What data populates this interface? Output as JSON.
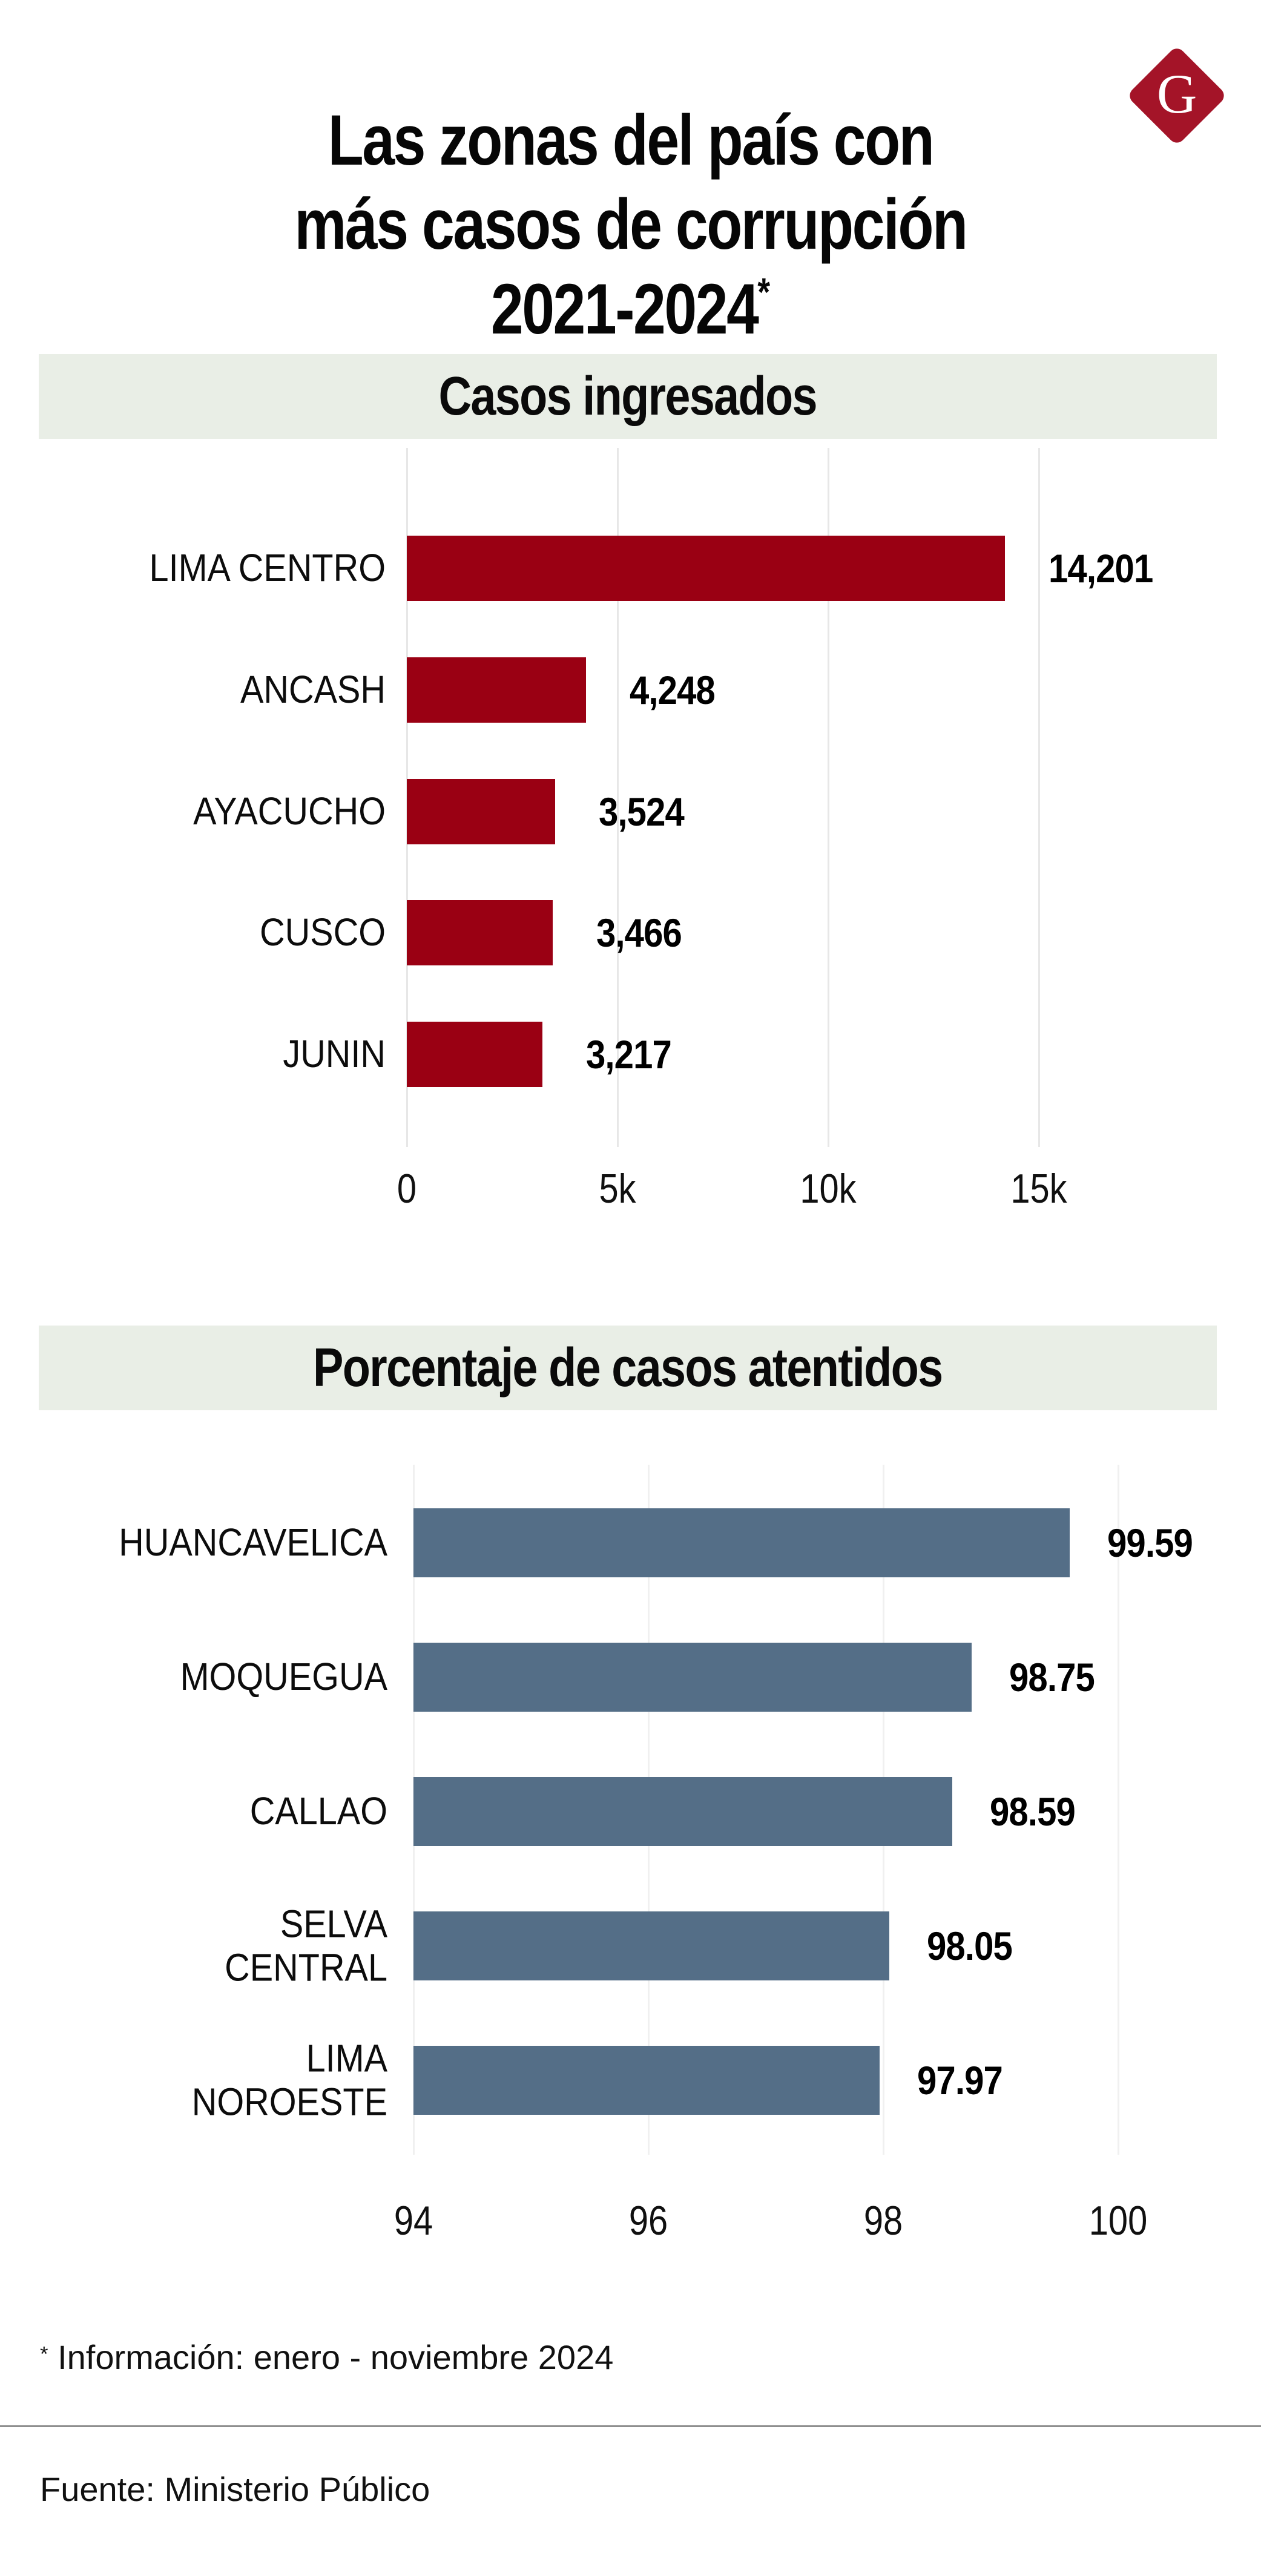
{
  "header": {
    "title_line1": "Las zonas del país con",
    "title_line2": "más casos de corrupción",
    "title_line3": "2021-2024",
    "title_asterisk": "*"
  },
  "logo": {
    "letter": "G",
    "bg_color": "#a41428"
  },
  "colors": {
    "bar_red": "#9a0013",
    "bar_blue": "#546e87",
    "strip_bg": "#e9eee6"
  },
  "footnote": {
    "asterisk": "*",
    "text": " Información: enero - noviembre 2024"
  },
  "source": "Fuente: Ministerio Público",
  "chart_data": [
    {
      "type": "bar",
      "orientation": "horizontal",
      "title": "Casos ingresados",
      "categories": [
        "LIMA CENTRO",
        "ANCASH",
        "AYACUCHO",
        "CUSCO",
        "JUNIN"
      ],
      "label_lines": [
        [
          "LIMA CENTRO"
        ],
        [
          "ANCASH"
        ],
        [
          "AYACUCHO"
        ],
        [
          "CUSCO"
        ],
        [
          "JUNIN"
        ]
      ],
      "values": [
        14201,
        4248,
        3524,
        3466,
        3217
      ],
      "value_labels": [
        "14,201",
        "4,248",
        "3,524",
        "3,466",
        "3,217"
      ],
      "xlim": [
        0,
        15800
      ],
      "ticks": [
        {
          "value": 0,
          "label": "0"
        },
        {
          "value": 5000,
          "label": "5k"
        },
        {
          "value": 10000,
          "label": "10k"
        },
        {
          "value": 15000,
          "label": "15k"
        }
      ],
      "bar_color": "#9a0013",
      "grid": true,
      "legend": null
    },
    {
      "type": "bar",
      "orientation": "horizontal",
      "title": "Porcentaje de casos atentidos",
      "categories": [
        "HUANCAVELICA",
        "MOQUEGUA",
        "CALLAO",
        "SELVA CENTRAL",
        "LIMA NOROESTE"
      ],
      "label_lines": [
        [
          "HUANCAVELICA"
        ],
        [
          "MOQUEGUA"
        ],
        [
          "CALLAO"
        ],
        [
          "SELVA",
          "CENTRAL"
        ],
        [
          "LIMA",
          "NOROESTE"
        ]
      ],
      "values": [
        99.59,
        98.75,
        98.59,
        98.05,
        97.97
      ],
      "value_labels": [
        "99.59",
        "98.75",
        "98.59",
        "98.05",
        "97.97"
      ],
      "xlim": [
        94,
        100.3
      ],
      "ticks": [
        {
          "value": 94,
          "label": "94"
        },
        {
          "value": 96,
          "label": "96"
        },
        {
          "value": 98,
          "label": "98"
        },
        {
          "value": 100,
          "label": "100"
        }
      ],
      "bar_color": "#546e87",
      "grid": true,
      "legend": null
    }
  ]
}
